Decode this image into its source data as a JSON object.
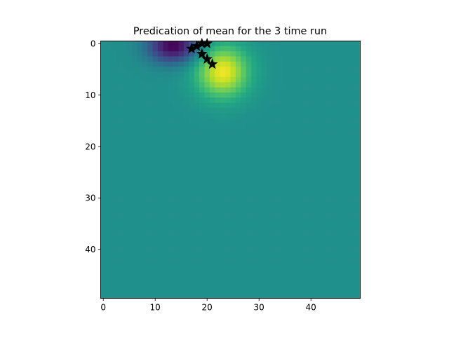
{
  "chart_data": {
    "type": "heatmap",
    "title": "Predication of mean for the 3 time run",
    "xlabel": "",
    "ylabel": "",
    "colormap": "viridis",
    "grid": false,
    "origin": "upper",
    "nx": 50,
    "ny": 50,
    "xlim": [
      -0.5,
      49.5
    ],
    "ylim": [
      49.5,
      -0.5
    ],
    "xticks": [
      0,
      10,
      20,
      30,
      40
    ],
    "yticks": [
      0,
      10,
      20,
      30,
      40
    ],
    "xtick_labels": [
      "0",
      "10",
      "20",
      "30",
      "40"
    ],
    "ytick_labels": [
      "0",
      "10",
      "20",
      "30",
      "40"
    ],
    "background_level": 0.5,
    "features": [
      {
        "kind": "high",
        "x": 23,
        "y": 5.5,
        "amplitude": 0.48,
        "spread_x": 3.5,
        "spread_y": 3.5
      },
      {
        "kind": "low",
        "x": 13.5,
        "y": 0.5,
        "amplitude": 0.5,
        "spread_x": 3.5,
        "spread_y": 2.3
      }
    ],
    "markers": {
      "symbol": "star",
      "color": "#000000",
      "points": [
        {
          "x": 17,
          "y": 1
        },
        {
          "x": 18,
          "y": 0.5
        },
        {
          "x": 19,
          "y": 0
        },
        {
          "x": 20,
          "y": 0
        },
        {
          "x": 19,
          "y": 2
        },
        {
          "x": 20,
          "y": 3
        },
        {
          "x": 21,
          "y": 4
        }
      ]
    }
  }
}
